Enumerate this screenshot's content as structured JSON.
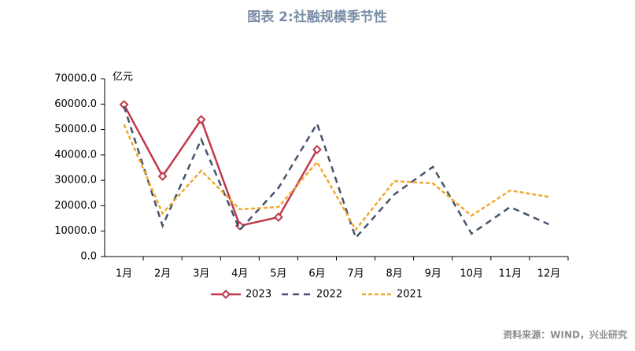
{
  "chart_data": {
    "type": "line",
    "title": "图表 2:社融规模季节性",
    "y_label": "亿元",
    "source": "资料来源：WIND，兴业研究",
    "categories": [
      "1月",
      "2月",
      "3月",
      "4月",
      "5月",
      "6月",
      "7月",
      "8月",
      "9月",
      "10月",
      "11月",
      "12月"
    ],
    "series": [
      {
        "name": "2023",
        "color": "#c0394b",
        "values": [
          59800,
          31600,
          53900,
          12100,
          15500,
          42100,
          null,
          null,
          null,
          null,
          null,
          null
        ]
      },
      {
        "name": "2022",
        "color": "#44546a",
        "values": [
          59200,
          12100,
          46100,
          10500,
          27000,
          52300,
          7400,
          24500,
          35300,
          9000,
          19500,
          12700
        ]
      },
      {
        "name": "2021",
        "color": "#f0a830",
        "values": [
          52000,
          17000,
          33800,
          18600,
          19500,
          37200,
          10600,
          29700,
          28800,
          16100,
          26000,
          23500
        ]
      }
    ],
    "ylim": [
      0,
      70000
    ],
    "yticks": [
      {
        "value": 0,
        "label": "0.0"
      },
      {
        "value": 10000,
        "label": "10000.0"
      },
      {
        "value": 20000,
        "label": "20000.0"
      },
      {
        "value": 30000,
        "label": "30000.0"
      },
      {
        "value": 40000,
        "label": "40000.0"
      },
      {
        "value": 50000,
        "label": "50000.0"
      },
      {
        "value": 60000,
        "label": "60000.0"
      },
      {
        "value": 70000,
        "label": "70000.0"
      }
    ],
    "legend": "bottom"
  }
}
